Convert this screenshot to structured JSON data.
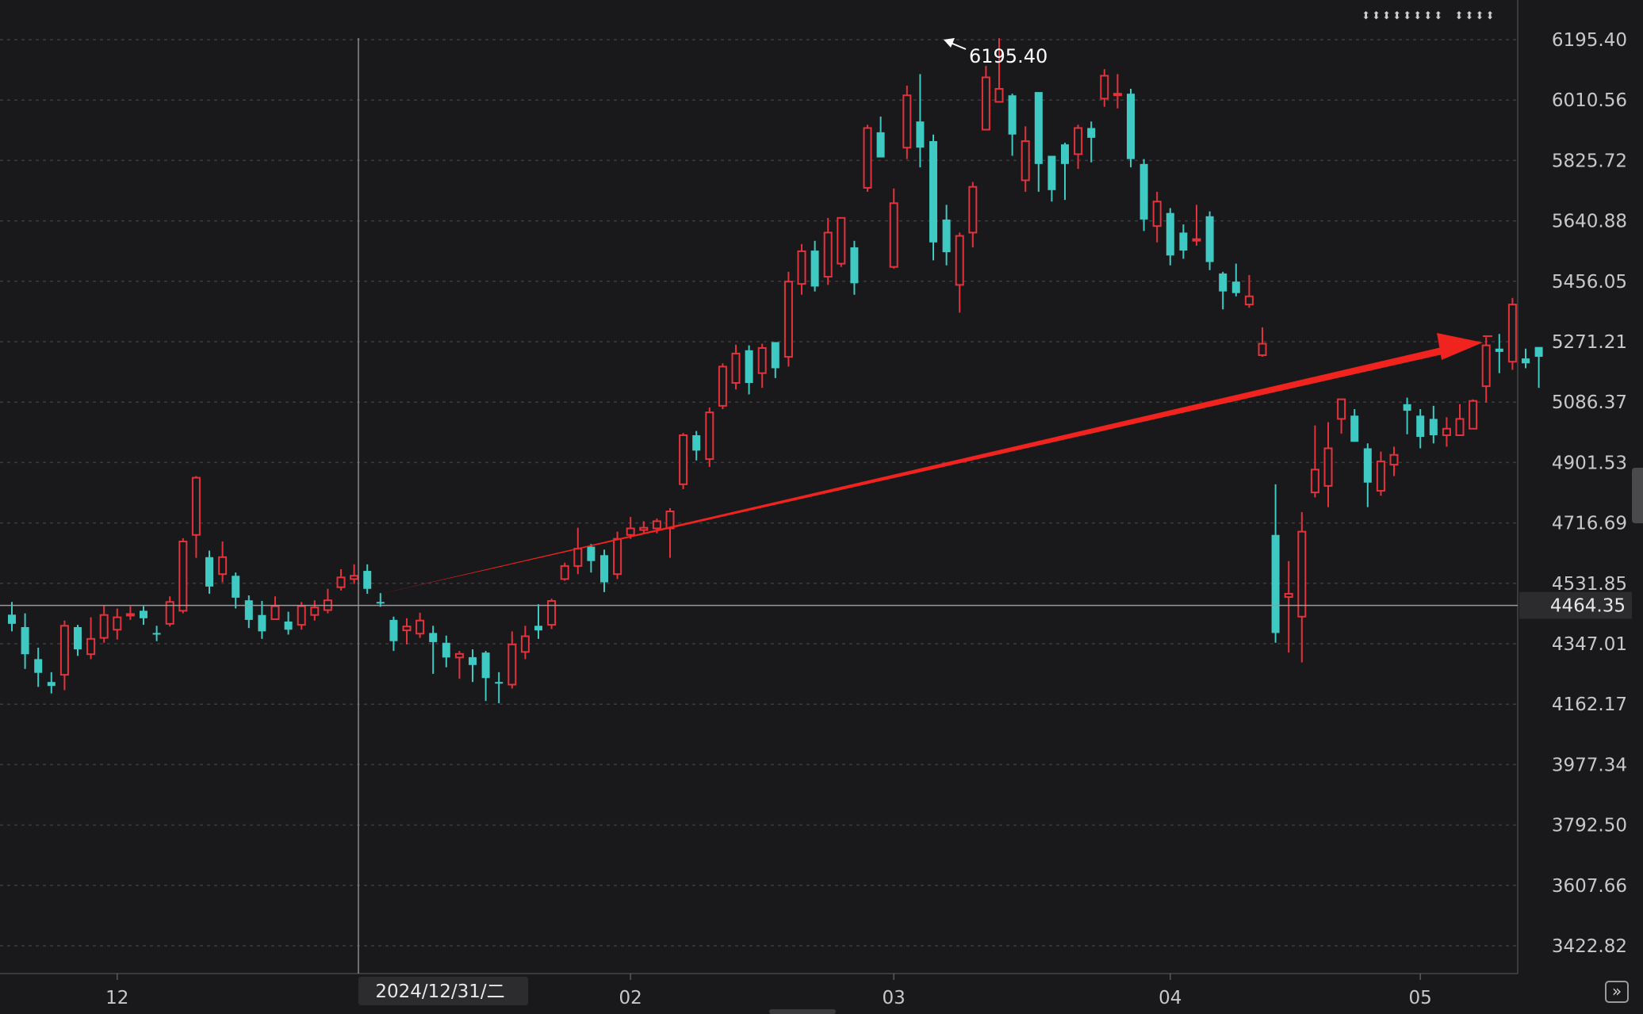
{
  "indicator_text": "⬍⬍⬍⬍⬍⬍⬍⬍ ⬍⬍⬍⬍",
  "crosshair": {
    "price_label": "4464.35",
    "date_label": "2024/12/31/二"
  },
  "peak_label": "6195.40",
  "colors": {
    "up": "#e3323b",
    "down": "#3fc9c3",
    "arrow": "#f0231f",
    "background": "#19191b",
    "grid": "#3c3c3e"
  },
  "chart_data": {
    "type": "candlestick",
    "title": "",
    "y_axis": {
      "ticks": [
        "6195.40",
        "6010.56",
        "5825.72",
        "5640.88",
        "5456.05",
        "5271.21",
        "5086.37",
        "4901.53",
        "4716.69",
        "4531.85",
        "4347.01",
        "4162.17",
        "3977.34",
        "3792.50",
        "3607.66",
        "3422.82"
      ],
      "range": [
        3380,
        6240
      ]
    },
    "x_axis": {
      "tick_labels": [
        "12",
        "02",
        "03",
        "04",
        "05"
      ],
      "tick_index": [
        8,
        47,
        67,
        88,
        107
      ]
    },
    "candles": [
      [
        4436,
        4408,
        4475,
        4385
      ],
      [
        4398,
        4315,
        4440,
        4270
      ],
      [
        4300,
        4258,
        4335,
        4215
      ],
      [
        4230,
        4218,
        4260,
        4195
      ],
      [
        4252,
        4402,
        4418,
        4205
      ],
      [
        4398,
        4330,
        4405,
        4310
      ],
      [
        4315,
        4362,
        4428,
        4300
      ],
      [
        4365,
        4435,
        4465,
        4350
      ],
      [
        4390,
        4428,
        4455,
        4360
      ],
      [
        4435,
        4438,
        4462,
        4420
      ],
      [
        4448,
        4425,
        4462,
        4405
      ],
      [
        4380,
        4375,
        4402,
        4355
      ],
      [
        4408,
        4475,
        4492,
        4400
      ],
      [
        4448,
        4660,
        4670,
        4440
      ],
      [
        4680,
        4855,
        4860,
        4610
      ],
      [
        4612,
        4522,
        4632,
        4500
      ],
      [
        4560,
        4612,
        4660,
        4535
      ],
      [
        4555,
        4488,
        4565,
        4455
      ],
      [
        4480,
        4420,
        4495,
        4395
      ],
      [
        4435,
        4385,
        4478,
        4362
      ],
      [
        4422,
        4462,
        4492,
        4420
      ],
      [
        4415,
        4390,
        4445,
        4375
      ],
      [
        4405,
        4462,
        4475,
        4390
      ],
      [
        4435,
        4458,
        4480,
        4418
      ],
      [
        4450,
        4480,
        4515,
        4440
      ],
      [
        4520,
        4550,
        4575,
        4510
      ],
      [
        4545,
        4555,
        4590,
        4530
      ],
      [
        4570,
        4515,
        4590,
        4500
      ],
      [
        4475,
        4470,
        4502,
        4460
      ],
      [
        4420,
        4355,
        4430,
        4325
      ],
      [
        4388,
        4400,
        4425,
        4345
      ],
      [
        4378,
        4418,
        4442,
        4365
      ],
      [
        4380,
        4352,
        4402,
        4255
      ],
      [
        4350,
        4305,
        4372,
        4275
      ],
      [
        4305,
        4316,
        4325,
        4240
      ],
      [
        4306,
        4282,
        4330,
        4230
      ],
      [
        4320,
        4242,
        4325,
        4172
      ],
      [
        4230,
        4225,
        4260,
        4165
      ],
      [
        4222,
        4345,
        4385,
        4210
      ],
      [
        4322,
        4370,
        4402,
        4300
      ],
      [
        4402,
        4388,
        4468,
        4362
      ],
      [
        4405,
        4478,
        4485,
        4392
      ],
      [
        4545,
        4585,
        4595,
        4540
      ],
      [
        4585,
        4638,
        4702,
        4560
      ],
      [
        4644,
        4600,
        4652,
        4565
      ],
      [
        4618,
        4535,
        4635,
        4505
      ],
      [
        4560,
        4668,
        4690,
        4545
      ],
      [
        4680,
        4700,
        4735,
        4668
      ],
      [
        4695,
        4702,
        4722,
        4685
      ],
      [
        4700,
        4722,
        4730,
        4685
      ],
      [
        4700,
        4752,
        4762,
        4610
      ],
      [
        4835,
        4985,
        4992,
        4820
      ],
      [
        4985,
        4938,
        4998,
        4908
      ],
      [
        4912,
        5055,
        5070,
        4888
      ],
      [
        5075,
        5195,
        5205,
        5065
      ],
      [
        5145,
        5235,
        5262,
        5125
      ],
      [
        5245,
        5145,
        5260,
        5110
      ],
      [
        5175,
        5252,
        5265,
        5130
      ],
      [
        5270,
        5190,
        5270,
        5160
      ],
      [
        5225,
        5455,
        5485,
        5195
      ],
      [
        5448,
        5548,
        5570,
        5415
      ],
      [
        5550,
        5440,
        5580,
        5425
      ],
      [
        5470,
        5605,
        5650,
        5445
      ],
      [
        5510,
        5650,
        5650,
        5500
      ],
      [
        5560,
        5450,
        5580,
        5415
      ],
      [
        5742,
        5925,
        5935,
        5730
      ],
      [
        5912,
        5835,
        5960,
        5855
      ],
      [
        5500,
        5695,
        5740,
        5495
      ],
      [
        5865,
        6025,
        6055,
        5830
      ],
      [
        5945,
        5865,
        6090,
        5805
      ],
      [
        5885,
        5575,
        5905,
        5520
      ],
      [
        5645,
        5545,
        5690,
        5505
      ],
      [
        5445,
        5595,
        5605,
        5360
      ],
      [
        5605,
        5745,
        5760,
        5560
      ],
      [
        5920,
        6080,
        6115,
        5920
      ],
      [
        6005,
        6045,
        6200,
        6030
      ],
      [
        6025,
        5905,
        6030,
        5840
      ],
      [
        5765,
        5885,
        5930,
        5730
      ],
      [
        6035,
        5815,
        6025,
        5730
      ],
      [
        5840,
        5735,
        5825,
        5700
      ],
      [
        5875,
        5815,
        5880,
        5705
      ],
      [
        5845,
        5925,
        5935,
        5800
      ],
      [
        5925,
        5895,
        5945,
        5820
      ],
      [
        6015,
        6085,
        6105,
        5990
      ],
      [
        6030,
        6030,
        6090,
        5985
      ],
      [
        6030,
        5830,
        6045,
        5805
      ],
      [
        5815,
        5645,
        5830,
        5610
      ],
      [
        5625,
        5700,
        5730,
        5575
      ],
      [
        5665,
        5535,
        5680,
        5505
      ],
      [
        5605,
        5550,
        5630,
        5525
      ],
      [
        5585,
        5585,
        5690,
        5565
      ],
      [
        5655,
        5515,
        5670,
        5490
      ],
      [
        5480,
        5425,
        5485,
        5370
      ],
      [
        5455,
        5420,
        5510,
        5410
      ],
      [
        5385,
        5410,
        5475,
        5375
      ],
      [
        5230,
        5265,
        5315,
        5225
      ],
      [
        4680,
        4380,
        4835,
        4350
      ],
      [
        4490,
        4500,
        4600,
        4320
      ],
      [
        4430,
        4690,
        4750,
        4290
      ],
      [
        4810,
        4880,
        5015,
        4795
      ],
      [
        4830,
        4945,
        5025,
        4765
      ],
      [
        5035,
        5095,
        5055,
        4990
      ],
      [
        5045,
        4965,
        5065,
        4965
      ],
      [
        4945,
        4840,
        4960,
        4765
      ],
      [
        4815,
        4905,
        4935,
        4800
      ],
      [
        4895,
        4925,
        4950,
        4860
      ],
      [
        5080,
        5060,
        5100,
        4988
      ],
      [
        5045,
        4980,
        5065,
        4945
      ],
      [
        5035,
        4985,
        5075,
        4960
      ],
      [
        4985,
        5005,
        5040,
        4950
      ],
      [
        4985,
        5035,
        5080,
        5000
      ],
      [
        5005,
        5090,
        5095,
        5060
      ],
      [
        5135,
        5260,
        5285,
        5085
      ],
      [
        5250,
        5240,
        5295,
        5175
      ],
      [
        5210,
        5385,
        5405,
        5185
      ],
      [
        5220,
        5205,
        5250,
        5190
      ],
      [
        5255,
        5225,
        5250,
        5130
      ]
    ]
  }
}
